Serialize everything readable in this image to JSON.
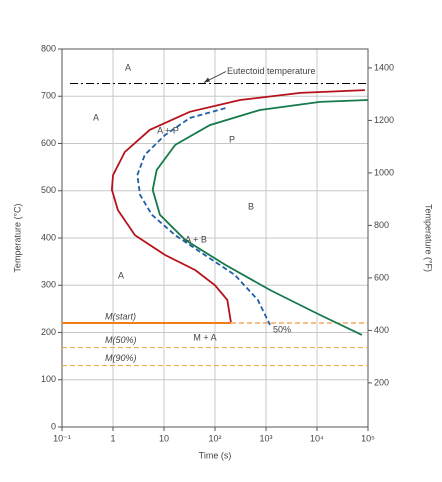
{
  "chart_data": {
    "type": "ttt",
    "xlabel": "Time (s)",
    "ylabel": "Temperature (°C)",
    "y2label": "Temperature (°F)",
    "xscale": "log",
    "xlim": [
      0.1,
      100000
    ],
    "xticks": [
      {
        "value": 0.1,
        "label": "10⁻¹"
      },
      1,
      10,
      {
        "value": 100,
        "label": "10²"
      },
      {
        "value": 1000,
        "label": "10³"
      },
      {
        "value": 10000,
        "label": "10⁴"
      },
      {
        "value": 100000,
        "label": "10⁵"
      }
    ],
    "ylim": [
      0,
      800
    ],
    "yticks": [
      0,
      100,
      200,
      300,
      400,
      500,
      600,
      700,
      800
    ],
    "y2lim": [
      32,
      1472
    ],
    "y2ticks": [
      200,
      400,
      600,
      800,
      1000,
      1200,
      1400
    ],
    "grid": true,
    "series": [
      {
        "color": "#b5121b",
        "style": "solid",
        "x": [
          87000,
          4700,
          310,
          32,
          5.3,
          1.7,
          1.0,
          0.95,
          1.25,
          2.7,
          10.5,
          41,
          100,
          174,
          205
        ],
        "values": [
          713,
          707,
          692,
          667,
          629,
          582,
          533,
          502,
          459,
          406,
          364,
          332,
          300,
          269,
          222
        ]
      },
      {
        "color": "#1f5fa8",
        "style": "dashed",
        "x": [
          160,
          32,
          10.5,
          4.2,
          3.0,
          3.4,
          5.8,
          16.6,
          63,
          245,
          690,
          1200
        ],
        "values": [
          675,
          654,
          618,
          576,
          533,
          491,
          449,
          406,
          364,
          322,
          269,
          216
        ]
      },
      {
        "color": "#157a4a",
        "style": "solid",
        "x": [
          100000,
          11500,
          760,
          79,
          16.6,
          7.2,
          6.0,
          8.3,
          26,
          160,
          1200,
          11500,
          76000
        ],
        "values": [
          692,
          688,
          671,
          639,
          597,
          544,
          502,
          449,
          396,
          343,
          290,
          237,
          195
        ]
      }
    ],
    "hlines": [
      {
        "label": "Eutectoid temperature",
        "value": 727,
        "color": "#000000",
        "style": "dashdot"
      },
      {
        "label": "M(start)",
        "value": 220,
        "color": "#f07f1a",
        "style": "solid"
      },
      {
        "label": "M(50%)",
        "value": 168,
        "color": "#f0a040",
        "style": "dashed"
      },
      {
        "label": "M(90%)",
        "value": 130,
        "color": "#f0a040",
        "style": "dashed"
      }
    ],
    "annotations": [
      "A",
      "A",
      "A + P",
      "P",
      "B",
      "A + B",
      "A",
      "M + A",
      "50%"
    ]
  }
}
